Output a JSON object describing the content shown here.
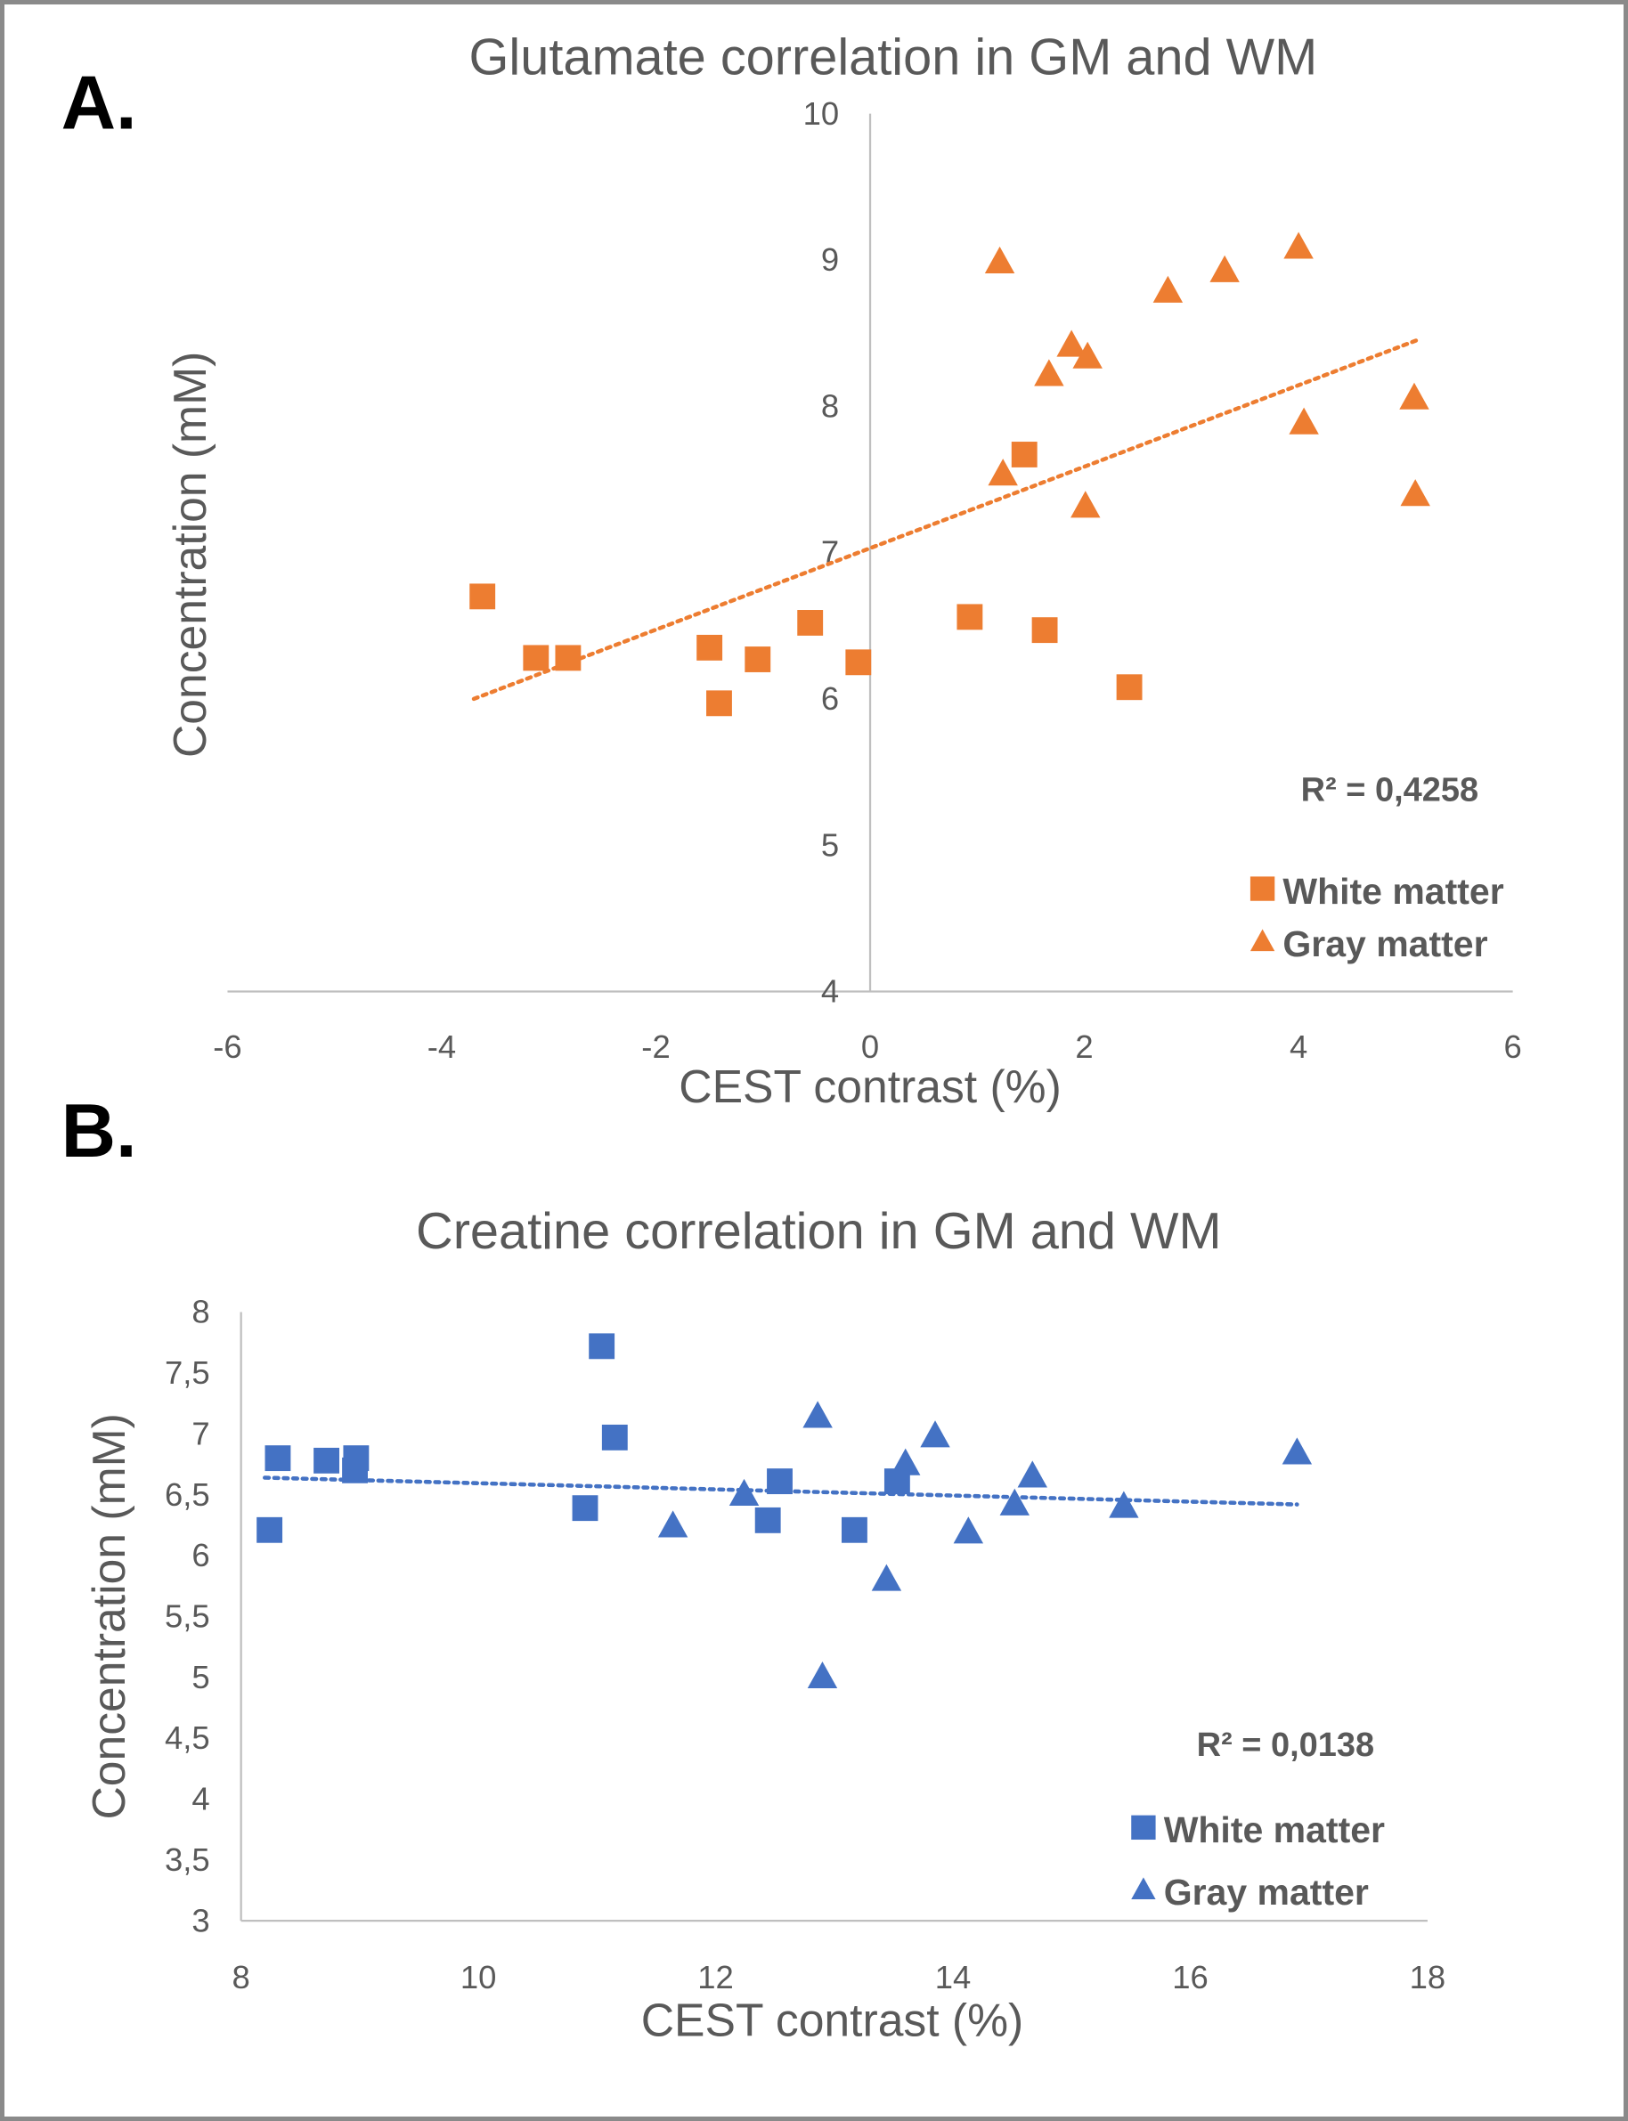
{
  "chart_data": [
    {
      "type": "scatter",
      "panel_label": "A.",
      "title": "Glutamate correlation in GM and WM",
      "xlabel": "CEST contrast (%)",
      "ylabel": "Concentration (mM)",
      "xlim": [
        -6,
        6
      ],
      "ylim": [
        4,
        10
      ],
      "xticks": [
        "-6",
        "-4",
        "-2",
        "0",
        "2",
        "4",
        "6"
      ],
      "yticks": [
        "4",
        "5",
        "6",
        "7",
        "8",
        "9",
        "10"
      ],
      "color": "#ED7D31",
      "r2_label": "R² = 0,4258",
      "legend_position": "bottom-right",
      "series": [
        {
          "name": "White matter",
          "marker": "square",
          "x": [
            -3.62,
            -3.12,
            -2.82,
            -1.5,
            -1.41,
            -1.05,
            -0.56,
            -0.11,
            0.93,
            1.44,
            1.63,
            2.42
          ],
          "y": [
            6.7,
            6.28,
            6.28,
            6.35,
            5.97,
            6.27,
            6.52,
            6.25,
            6.56,
            7.67,
            6.47,
            6.08
          ]
        },
        {
          "name": "Gray matter",
          "marker": "triangle",
          "x": [
            1.21,
            1.24,
            1.67,
            1.88,
            2.03,
            2.01,
            2.78,
            3.31,
            4.0,
            4.05,
            5.08,
            5.09
          ],
          "y": [
            9.0,
            7.55,
            8.23,
            8.43,
            8.35,
            7.33,
            8.8,
            8.94,
            9.1,
            7.9,
            8.07,
            7.41
          ]
        }
      ],
      "trendline": {
        "x": [
          -3.7,
          5.1
        ],
        "y": [
          6.0,
          8.45
        ]
      }
    },
    {
      "type": "scatter",
      "panel_label": "B.",
      "title": "Creatine correlation in GM and WM",
      "xlabel": "CEST contrast (%)",
      "ylabel": "Concentration (mM)",
      "xlim": [
        8,
        18
      ],
      "ylim": [
        3,
        8
      ],
      "xticks": [
        "8",
        "10",
        "12",
        "14",
        "16",
        "18"
      ],
      "yticks": [
        "3",
        "3,5",
        "4",
        "4,5",
        "5",
        "5,5",
        "6",
        "6,5",
        "7",
        "7,5",
        "8"
      ],
      "color": "#4472C4",
      "r2_label": "R² = 0,0138",
      "legend_position": "bottom-right",
      "series": [
        {
          "name": "White matter",
          "marker": "square",
          "x": [
            8.24,
            8.31,
            8.72,
            8.97,
            8.96,
            10.9,
            11.04,
            11.15,
            12.44,
            12.54,
            13.17,
            13.53
          ],
          "y": [
            6.21,
            6.8,
            6.78,
            6.8,
            6.7,
            6.39,
            7.72,
            6.97,
            6.29,
            6.61,
            6.21,
            6.61
          ]
        },
        {
          "name": "Gray matter",
          "marker": "triangle",
          "x": [
            11.64,
            12.24,
            12.86,
            12.9,
            13.44,
            13.6,
            13.85,
            14.13,
            14.52,
            14.67,
            15.44,
            16.9
          ],
          "y": [
            6.26,
            6.52,
            7.16,
            5.02,
            5.82,
            6.77,
            7.0,
            6.21,
            6.44,
            6.67,
            6.42,
            6.86
          ]
        }
      ],
      "trendline": {
        "x": [
          8.2,
          16.9
        ],
        "y": [
          6.64,
          6.42
        ]
      }
    }
  ]
}
